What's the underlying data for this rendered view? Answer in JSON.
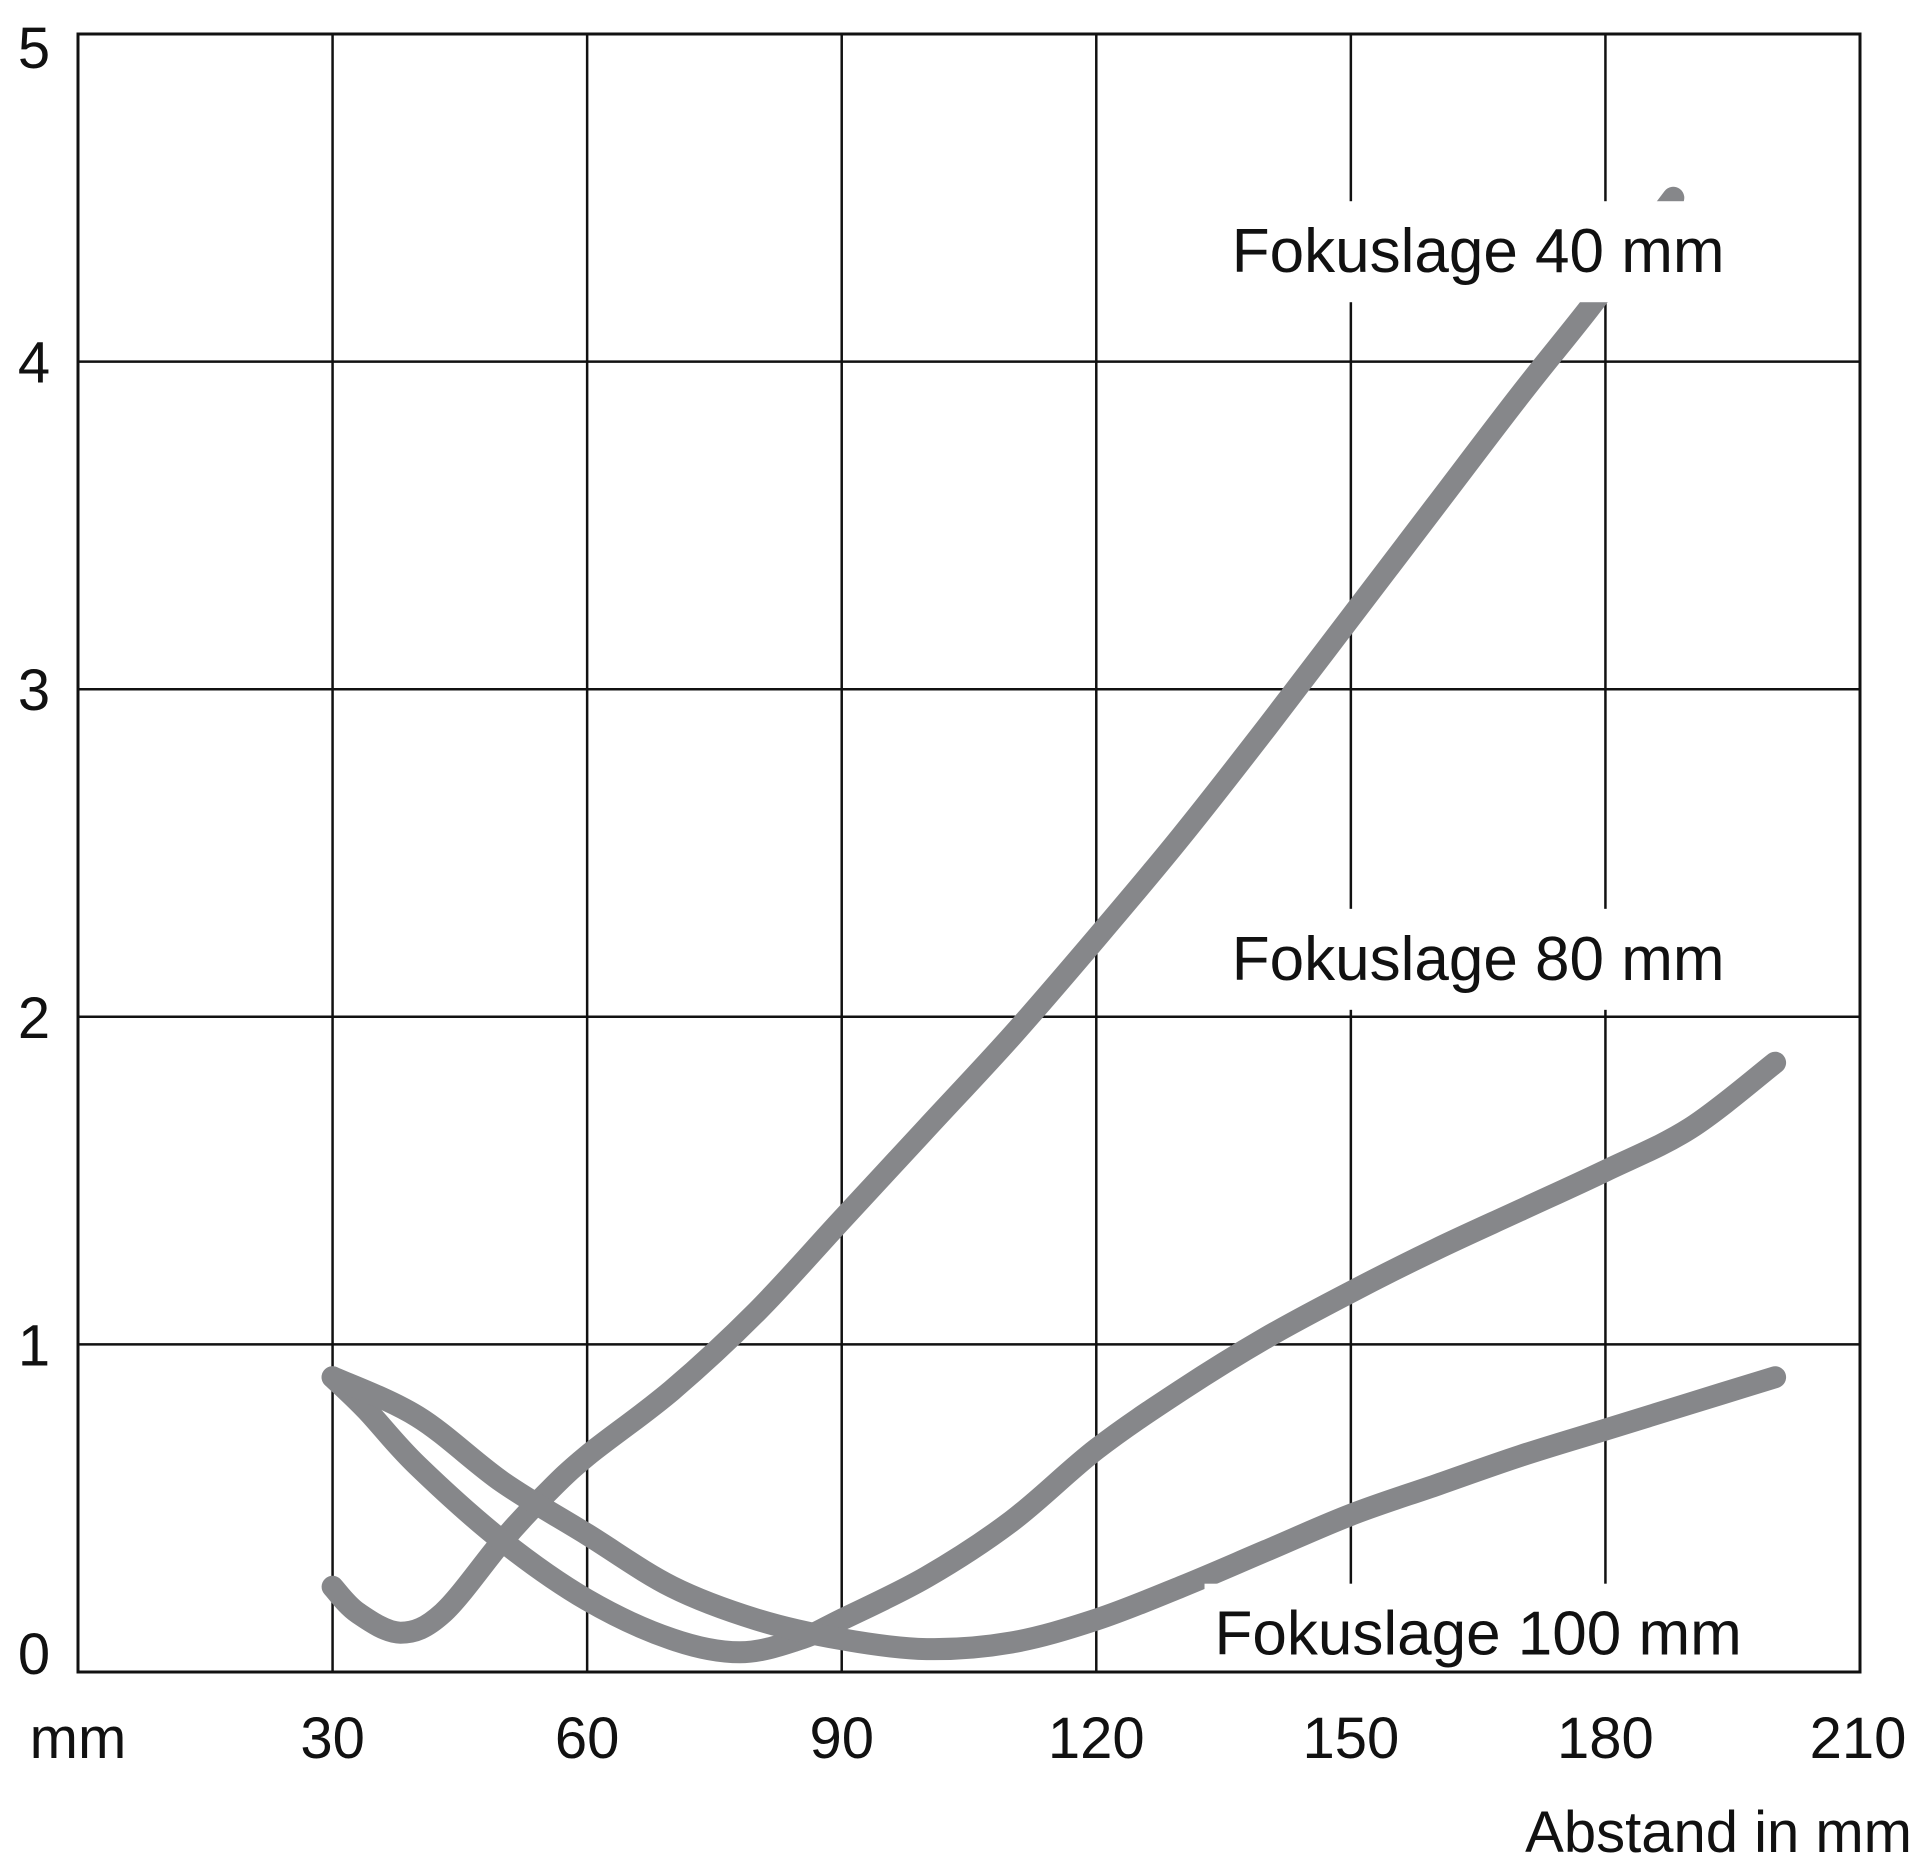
{
  "chart_data": {
    "type": "line",
    "title": "",
    "xlabel": "Abstand in mm",
    "ylabel": "",
    "x_unit_label": "mm",
    "xlim": [
      0,
      210
    ],
    "ylim": [
      0,
      5
    ],
    "x_ticks": [
      30,
      60,
      90,
      120,
      150,
      180,
      210
    ],
    "y_ticks": [
      0,
      1,
      2,
      3,
      4,
      5
    ],
    "grid": true,
    "line_color": "#86878a",
    "series": [
      {
        "name": "Fokuslage 40 mm",
        "points": [
          [
            30,
            0.26
          ],
          [
            33,
            0.18
          ],
          [
            38,
            0.12
          ],
          [
            43,
            0.18
          ],
          [
            50,
            0.4
          ],
          [
            55,
            0.54
          ],
          [
            60,
            0.66
          ],
          [
            70,
            0.86
          ],
          [
            80,
            1.1
          ],
          [
            90,
            1.38
          ],
          [
            100,
            1.66
          ],
          [
            110,
            1.94
          ],
          [
            120,
            2.24
          ],
          [
            130,
            2.55
          ],
          [
            140,
            2.88
          ],
          [
            150,
            3.22
          ],
          [
            160,
            3.56
          ],
          [
            170,
            3.9
          ],
          [
            178,
            4.16
          ],
          [
            188,
            4.5
          ]
        ]
      },
      {
        "name": "Fokuslage 80 mm",
        "points": [
          [
            30,
            0.9
          ],
          [
            34,
            0.8
          ],
          [
            40,
            0.63
          ],
          [
            50,
            0.4
          ],
          [
            60,
            0.22
          ],
          [
            70,
            0.1
          ],
          [
            78,
            0.06
          ],
          [
            85,
            0.1
          ],
          [
            90,
            0.16
          ],
          [
            100,
            0.29
          ],
          [
            110,
            0.46
          ],
          [
            120,
            0.68
          ],
          [
            130,
            0.86
          ],
          [
            140,
            1.02
          ],
          [
            150,
            1.16
          ],
          [
            160,
            1.29
          ],
          [
            170,
            1.41
          ],
          [
            180,
            1.53
          ],
          [
            190,
            1.66
          ],
          [
            200,
            1.86
          ]
        ]
      },
      {
        "name": "Fokuslage 100 mm",
        "points": [
          [
            30,
            0.9
          ],
          [
            40,
            0.78
          ],
          [
            50,
            0.58
          ],
          [
            60,
            0.42
          ],
          [
            70,
            0.26
          ],
          [
            80,
            0.16
          ],
          [
            90,
            0.1
          ],
          [
            100,
            0.07
          ],
          [
            110,
            0.09
          ],
          [
            120,
            0.16
          ],
          [
            130,
            0.26
          ],
          [
            140,
            0.37
          ],
          [
            150,
            0.48
          ],
          [
            160,
            0.57
          ],
          [
            170,
            0.66
          ],
          [
            180,
            0.74
          ],
          [
            190,
            0.82
          ],
          [
            200,
            0.9
          ]
        ]
      }
    ],
    "annotations": [
      {
        "series": "Fokuslage 40 mm",
        "text": "Fokuslage 40 mm",
        "x": 165,
        "y": 4.34
      },
      {
        "series": "Fokuslage 80 mm",
        "text": "Fokuslage 80 mm",
        "x": 165,
        "y": 2.18
      },
      {
        "series": "Fokuslage 100 mm",
        "text": "Fokuslage 100 mm",
        "x": 165,
        "y": 0.12
      }
    ]
  }
}
